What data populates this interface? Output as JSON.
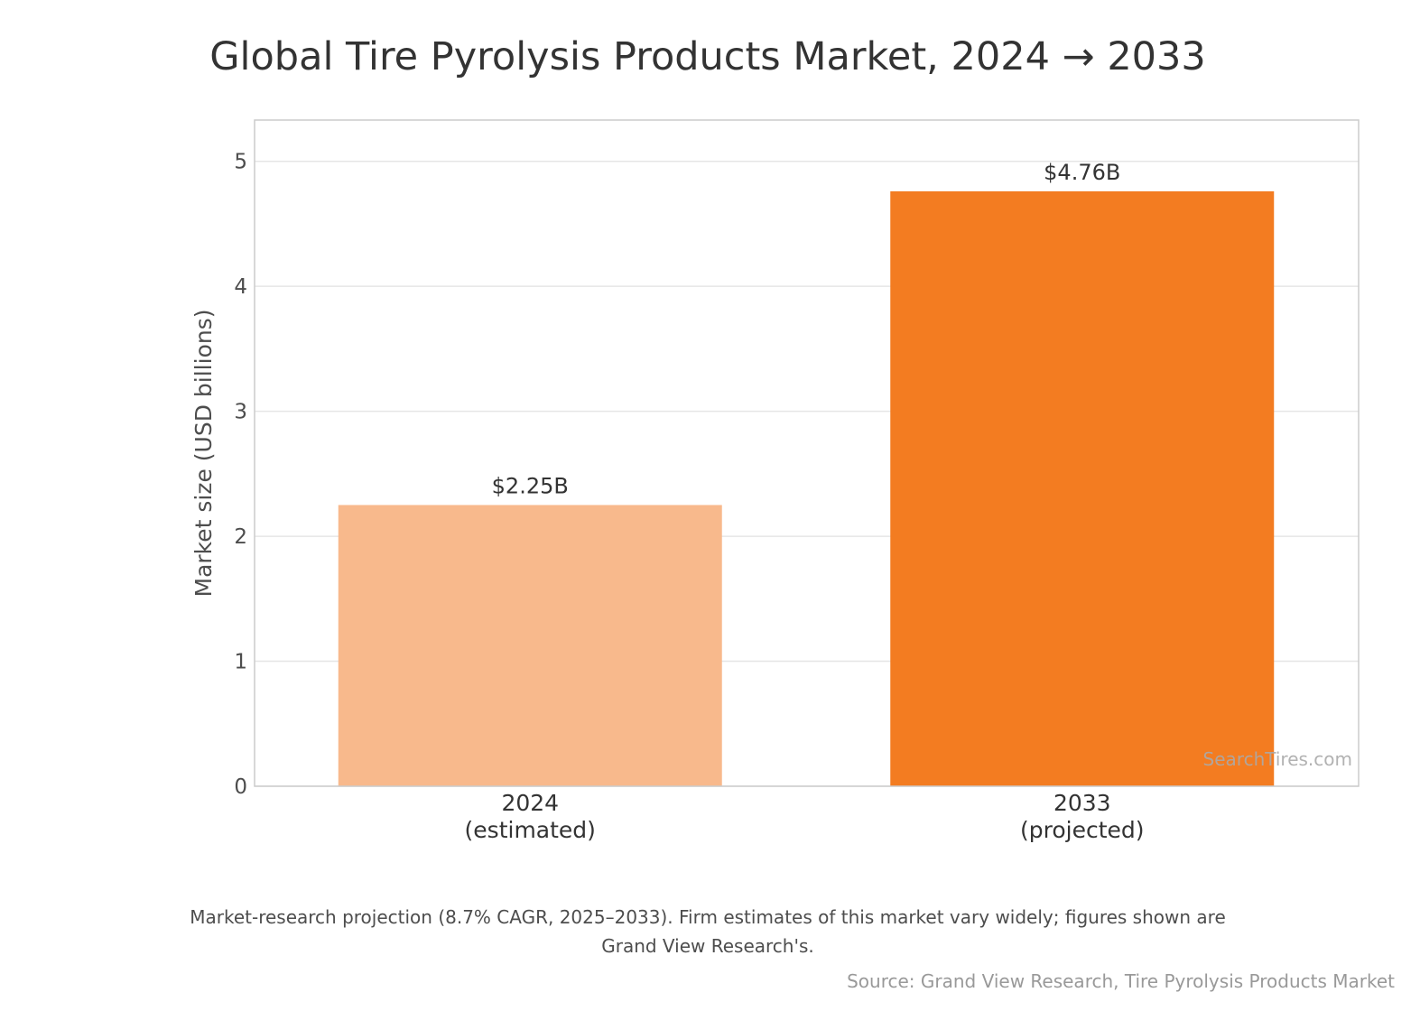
{
  "chart_data": {
    "type": "bar",
    "title": "Global Tire Pyrolysis Products Market, 2024 → 2033",
    "ylabel": "Market size (USD billions)",
    "xlabel": "",
    "ylim": [
      0,
      5.33
    ],
    "yticks": [
      "0",
      "1",
      "2",
      "3",
      "4",
      "5"
    ],
    "grid": true,
    "categories": [
      {
        "line1": "2024",
        "line2": "(estimated)"
      },
      {
        "line1": "2033",
        "line2": "(projected)"
      }
    ],
    "values": [
      2.25,
      4.76
    ],
    "value_labels": [
      "$2.25B",
      "$4.76B"
    ],
    "colors": [
      "#f8b98c",
      "#f37c21"
    ]
  },
  "watermark": "SearchTires.com",
  "note": {
    "line1": "Market-research projection (8.7% CAGR, 2025–2033). Firm estimates of this market vary widely; figures shown are",
    "line2": "Grand View Research's."
  },
  "source": "Source: Grand View Research, Tire Pyrolysis Products Market"
}
